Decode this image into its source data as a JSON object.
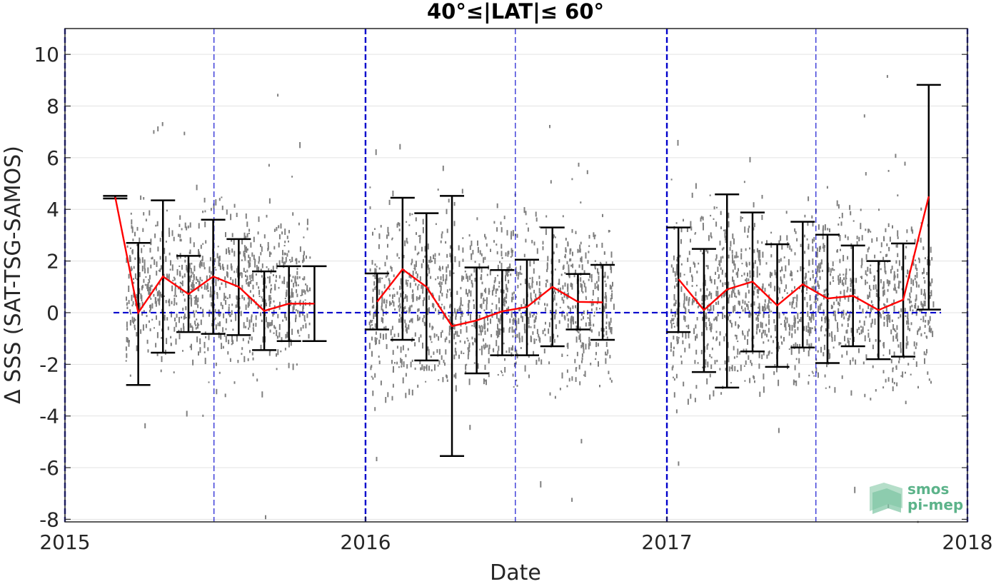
{
  "chart_data": {
    "type": "scatter",
    "title": "40°≤|LAT|≤ 60°",
    "xlabel": "Date",
    "ylabel": "Δ SSS (SAT-TSG-SAMOS)",
    "xlim": [
      "2015-01-01",
      "2018-01-01"
    ],
    "ylim": [
      -8.1,
      11
    ],
    "xticks": [
      "2015",
      "2016",
      "2017",
      "2018"
    ],
    "yticks": [
      -8,
      -6,
      -4,
      -2,
      0,
      2,
      4,
      6,
      8,
      10
    ],
    "grid": true,
    "colors": {
      "scatter": "#808080",
      "mean": "#ff0000",
      "errorbar": "#000000",
      "reference": "#0000cc",
      "year_line": "#0000cc"
    },
    "reference_line": {
      "y": 0,
      "x_start": "2015-03-01",
      "x_end": "2017-11-30"
    },
    "year_boundaries": [
      "2015-01-01",
      "2016-01-01",
      "2017-01-01",
      "2018-01-01"
    ],
    "half_year_lines": [
      "2015-07-01",
      "2016-07-01",
      "2017-07-01"
    ],
    "scatter_clusters": [
      {
        "x_start": "2015-03-15",
        "x_end": "2015-10-25",
        "y_center": 0.9,
        "y_spread": 2.0,
        "count": 900
      },
      {
        "x_start": "2016-01-05",
        "x_end": "2016-10-28",
        "y_center": 0.4,
        "y_spread": 2.2,
        "count": 1200
      },
      {
        "x_start": "2017-01-05",
        "x_end": "2017-11-20",
        "y_center": 0.5,
        "y_spread": 2.3,
        "count": 1300
      }
    ],
    "series": [
      {
        "x": [
          "2015-03-03",
          "2015-03-31",
          "2015-04-30",
          "2015-05-31",
          "2015-06-30",
          "2015-07-31",
          "2015-08-31",
          "2015-09-30",
          "2015-10-31"
        ],
        "mean": [
          4.47,
          0.0,
          1.4,
          0.72,
          1.4,
          1.0,
          0.07,
          0.35,
          0.35
        ],
        "lower": [
          4.42,
          -2.8,
          -1.55,
          -0.75,
          -0.82,
          -0.87,
          -1.45,
          -1.1,
          -1.1
        ],
        "upper": [
          4.52,
          2.7,
          4.35,
          2.2,
          3.6,
          2.85,
          1.6,
          1.8,
          1.8
        ]
      },
      {
        "x": [
          "2016-01-15",
          "2016-02-15",
          "2016-03-15",
          "2016-04-15",
          "2016-05-15",
          "2016-06-15",
          "2016-07-15",
          "2016-08-15",
          "2016-09-15",
          "2016-10-15"
        ],
        "mean": [
          0.42,
          1.68,
          1.0,
          -0.52,
          -0.3,
          0.05,
          0.22,
          1.0,
          0.42,
          0.4
        ],
        "lower": [
          -0.65,
          -1.05,
          -1.85,
          -5.55,
          -2.35,
          -1.65,
          -1.65,
          -1.3,
          -0.65,
          -1.05
        ],
        "upper": [
          1.52,
          4.45,
          3.85,
          4.52,
          1.75,
          1.65,
          2.05,
          3.3,
          1.5,
          1.85
        ]
      },
      {
        "x": [
          "2017-01-15",
          "2017-02-15",
          "2017-03-15",
          "2017-04-15",
          "2017-05-15",
          "2017-06-15",
          "2017-07-15",
          "2017-08-15",
          "2017-09-15",
          "2017-10-15",
          "2017-11-15"
        ],
        "mean": [
          1.3,
          0.1,
          0.9,
          1.2,
          0.28,
          1.1,
          0.55,
          0.65,
          0.1,
          0.5,
          4.5
        ],
        "lower": [
          -0.75,
          -2.3,
          -2.9,
          -1.5,
          -2.1,
          -1.35,
          -1.95,
          -1.3,
          -1.8,
          -1.7,
          0.12
        ],
        "upper": [
          3.3,
          2.47,
          4.58,
          3.88,
          2.65,
          3.52,
          3.02,
          2.6,
          2.0,
          2.68,
          8.82
        ]
      }
    ]
  },
  "logo": {
    "line1": "smos",
    "line2": "pi-mep"
  }
}
